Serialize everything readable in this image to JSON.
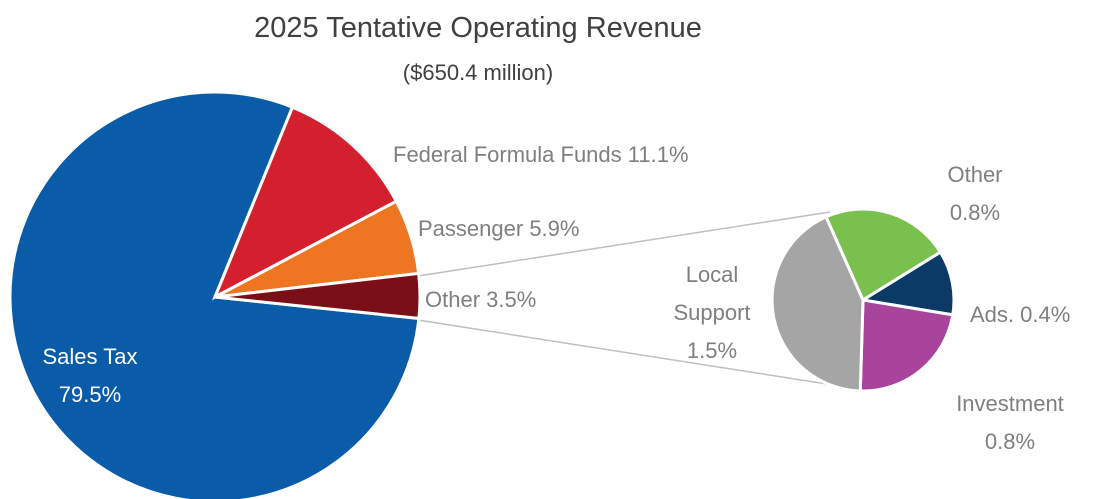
{
  "chart_data": {
    "type": "pie",
    "title": "2025 Tentative Operating Revenue",
    "subtitle": "($650.4 million)",
    "categories": [
      "Sales Tax",
      "Federal Formula Funds",
      "Passenger",
      "Other"
    ],
    "values": [
      79.5,
      11.1,
      5.9,
      3.5
    ],
    "value_labels": [
      "79.5%",
      "11.1%",
      "5.9%",
      "3.5%"
    ],
    "colors": [
      "#0a5ca8",
      "#d41f2e",
      "#ee7623",
      "#7b0f17"
    ],
    "breakdown": {
      "categories": [
        "Other",
        "Ads.",
        "Investment",
        "Local Support"
      ],
      "values": [
        0.8,
        0.4,
        0.8,
        1.5
      ],
      "value_labels": [
        "0.8%",
        "0.4%",
        "0.8%",
        "1.5%"
      ],
      "colors": [
        "#79c04f",
        "#0b3a66",
        "#a8449c",
        "#a5a5a5"
      ]
    }
  }
}
